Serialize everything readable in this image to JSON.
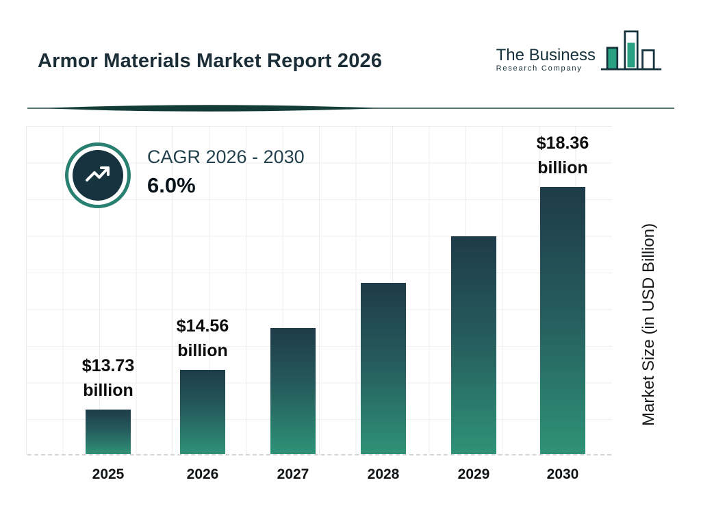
{
  "header": {
    "title": "Armor Materials Market Report 2026",
    "logo": {
      "line1": "The Business",
      "line2": "Research Company"
    }
  },
  "cagr": {
    "label": "CAGR 2026 - 2030",
    "value": "6.0%"
  },
  "chart_data": {
    "type": "bar",
    "categories": [
      "2025",
      "2026",
      "2027",
      "2028",
      "2029",
      "2030"
    ],
    "values": [
      13.73,
      14.56,
      15.43,
      16.36,
      17.34,
      18.36
    ],
    "unit": "USD billion",
    "bar_value_labels": [
      "$13.73\nbillion",
      "$14.56\nbillion",
      null,
      null,
      null,
      "$18.36\nbillion"
    ],
    "xlabel": "",
    "ylabel": "Market Size (in USD Billion)",
    "value_range_shown": [
      13.73,
      18.36
    ],
    "grid": true,
    "colors": {
      "bar_gradient_top": "#1e3b49",
      "bar_gradient_bottom": "#2f9277",
      "accent_teal": "#2a8070",
      "dark_navy": "#16333f"
    }
  }
}
